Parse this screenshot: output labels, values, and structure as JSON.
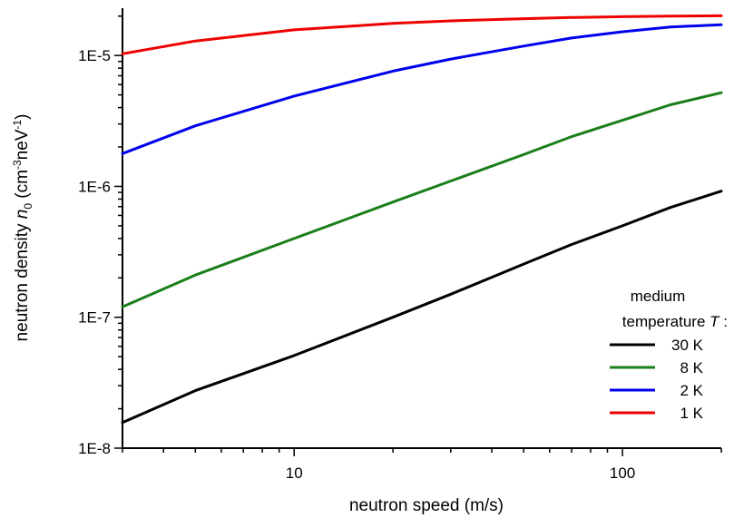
{
  "chart_data": {
    "type": "line",
    "xlabel": "neutron speed (m/s)",
    "ylabel_parts": [
      "neutron density ",
      "n",
      "0",
      " (cm",
      "-3",
      "neV",
      "-1",
      ")"
    ],
    "x_scale": "log",
    "y_scale": "log",
    "xlim": [
      3,
      200
    ],
    "ylim": [
      1e-08,
      2.3e-05
    ],
    "x_major_ticks": [
      {
        "value": 10,
        "label": "10"
      },
      {
        "value": 100,
        "label": "100"
      }
    ],
    "y_major_ticks": [
      {
        "value": 1e-08,
        "label": "1E-8"
      },
      {
        "value": 1e-07,
        "label": "1E-7"
      },
      {
        "value": 1e-06,
        "label": "1E-6"
      },
      {
        "value": 1e-05,
        "label": "1E-5"
      }
    ],
    "legend": {
      "title_line1": "medium",
      "title_line2_prefix": "temperature ",
      "title_line2_var": "T",
      "title_line2_suffix": " :",
      "placement": "bottom-right"
    },
    "x": [
      3,
      5,
      10,
      20,
      30,
      50,
      70,
      100,
      140,
      200
    ],
    "series": [
      {
        "name": "30 K",
        "color": "#000000",
        "values": [
          1.57e-08,
          2.75e-08,
          5.1e-08,
          1e-07,
          1.5e-07,
          2.55e-07,
          3.6e-07,
          5e-07,
          6.9e-07,
          9.2e-07
        ]
      },
      {
        "name": "8 K",
        "color": "#1a7f1a",
        "values": [
          1.2e-07,
          2.1e-07,
          4e-07,
          7.6e-07,
          1.1e-06,
          1.75e-06,
          2.4e-06,
          3.2e-06,
          4.2e-06,
          5.2e-06
        ]
      },
      {
        "name": "2 K",
        "color": "#0000ee",
        "values": [
          1.78e-06,
          2.9e-06,
          4.9e-06,
          7.6e-06,
          9.4e-06,
          1.18e-05,
          1.36e-05,
          1.52e-05,
          1.65e-05,
          1.72e-05
        ]
      },
      {
        "name": "1 K",
        "color": "#ee0000",
        "values": [
          1.03e-05,
          1.29e-05,
          1.57e-05,
          1.76e-05,
          1.84e-05,
          1.91e-05,
          1.95e-05,
          1.98e-05,
          2e-05,
          2.01e-05
        ]
      }
    ]
  }
}
